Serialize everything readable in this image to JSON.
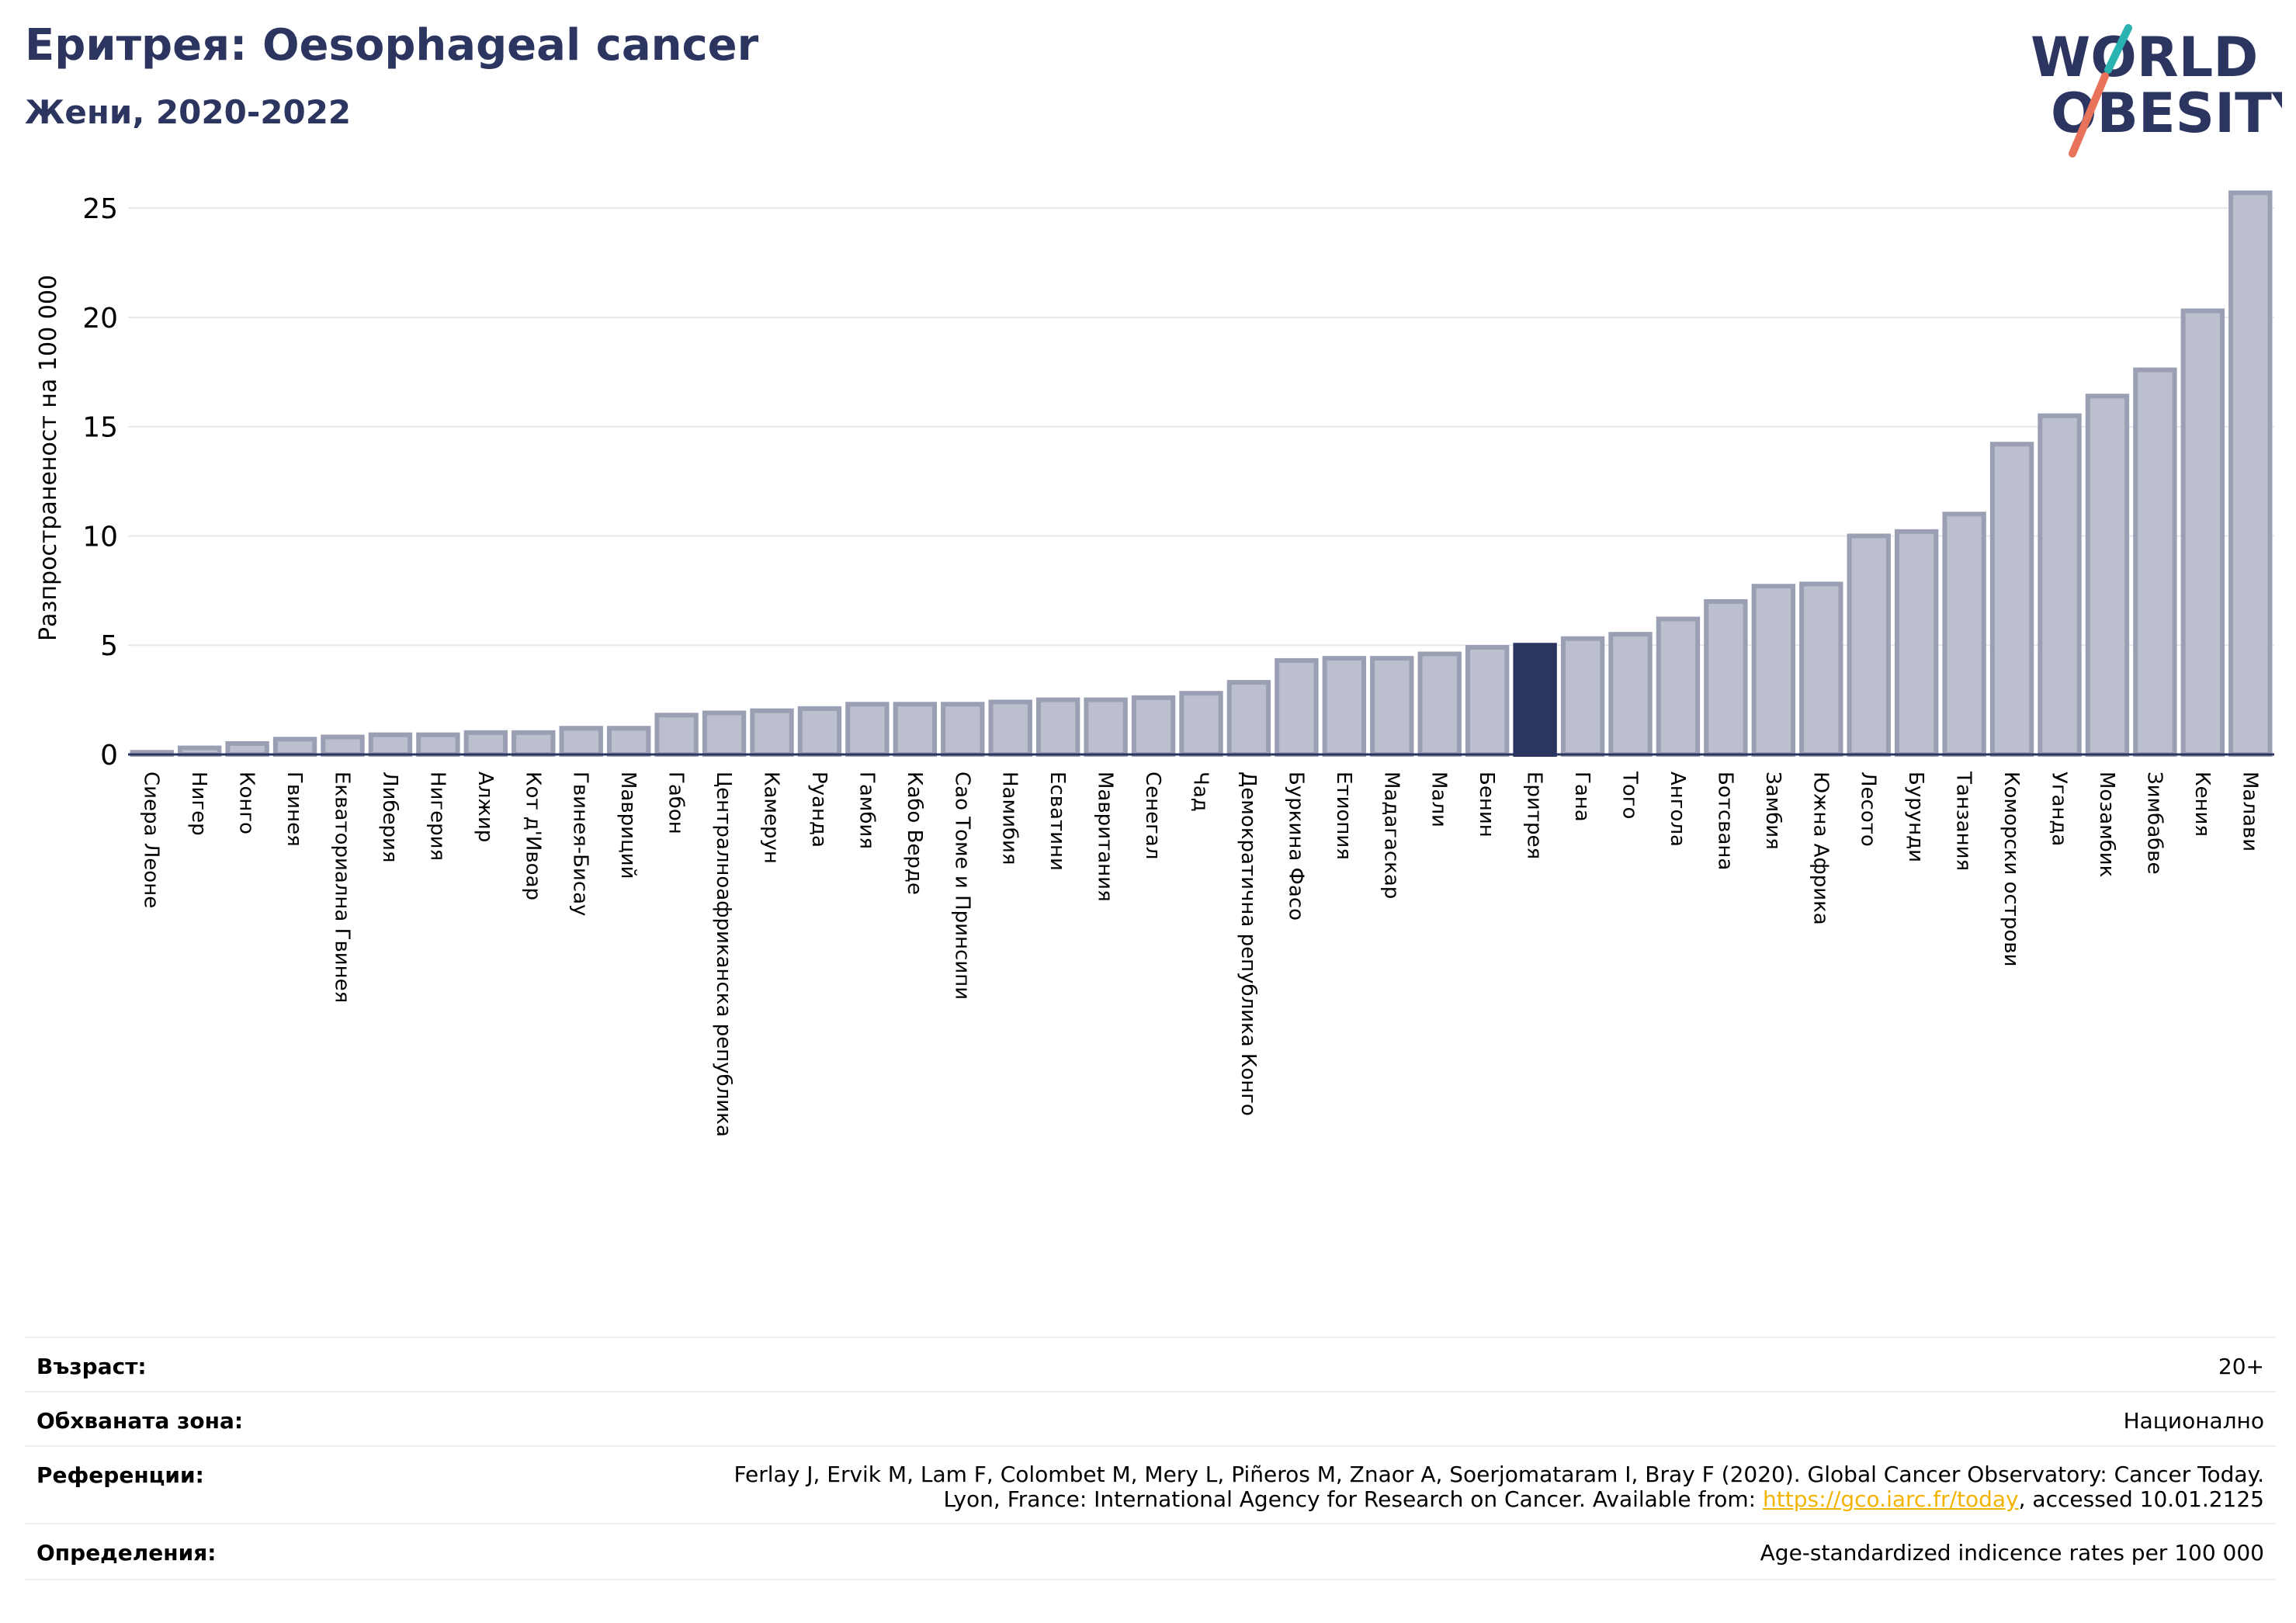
{
  "header": {
    "title": "Еритрея: Oesophageal cancer",
    "subtitle": "Жени, 2020-2022"
  },
  "logo": {
    "line1": "WORLD",
    "line2": "OBESITY",
    "colors": {
      "text": "#2c3560",
      "slash_top": "#2ab3b1",
      "slash_bottom": "#e8735a"
    }
  },
  "colors": {
    "bar_fill": "#bcc0ce",
    "bar_edge": "#9a9fb4",
    "highlight": "#2c3560",
    "grid": "#e6e8ef",
    "axis": "#2c3560"
  },
  "chart_data": {
    "type": "bar",
    "title": "",
    "xlabel": "",
    "ylabel": "Разпространеност  на 100 000",
    "ylim": [
      0,
      26
    ],
    "yticks": [
      0,
      5,
      10,
      15,
      20,
      25
    ],
    "grid": true,
    "highlight": "Еритрея",
    "categories": [
      "Сиера Леоне",
      "Нигер",
      "Конго",
      "Гвинея",
      "Екваториална Гвинея",
      "Либерия",
      "Нигерия",
      "Алжир",
      "Кот д'Ивоар",
      "Гвинея-Бисау",
      "Мавриций",
      "Габон",
      "Централноафриканска република",
      "Камерун",
      "Руанда",
      "Гамбия",
      "Кабо Верде",
      "Сао Томе и Принсипи",
      "Намибия",
      "Есватини",
      "Мавритания",
      "Сенегал",
      "Чад",
      "Демократична република Конго",
      "Буркина Фасо",
      "Етиопия",
      "Мадагаскар",
      "Мали",
      "Бенин",
      "Еритрея",
      "Гана",
      "Того",
      "Ангола",
      "Ботсвана",
      "Замбия",
      "Южна Африка",
      "Лесото",
      "Бурунди",
      "Танзания",
      "Коморски острови",
      "Уганда",
      "Мозамбик",
      "Зимбабве",
      "Кения",
      "Малави"
    ],
    "values": [
      0.1,
      0.3,
      0.5,
      0.7,
      0.8,
      0.9,
      0.9,
      1.0,
      1.0,
      1.2,
      1.2,
      1.8,
      1.9,
      2.0,
      2.1,
      2.3,
      2.3,
      2.3,
      2.4,
      2.5,
      2.5,
      2.6,
      2.8,
      3.3,
      4.3,
      4.4,
      4.4,
      4.6,
      4.9,
      5.0,
      5.3,
      5.5,
      6.2,
      7.0,
      7.7,
      7.8,
      10.0,
      10.2,
      11.0,
      14.2,
      15.5,
      16.4,
      17.6,
      20.3,
      25.7
    ]
  },
  "meta": {
    "age_label": "Възраст:",
    "age_value": "20+",
    "coverage_label": "Обхваната зона:",
    "coverage_value": "Национално",
    "references_label": "Референции:",
    "references_line1": "Ferlay J, Ervik M, Lam F, Colombet M, Mery L, Piñeros M, Znaor A, Soerjomataram I, Bray F (2020). Global Cancer Observatory: Cancer Today.",
    "references_line2_prefix": "Lyon, France: International Agency for Research on Cancer. Available from: ",
    "references_link": "https://gco.iarc.fr/today",
    "references_line2_suffix": ", accessed 10.01.2125",
    "definitions_label": "Определения:",
    "definitions_value": "Age-standardized indicence rates per 100 000"
  }
}
